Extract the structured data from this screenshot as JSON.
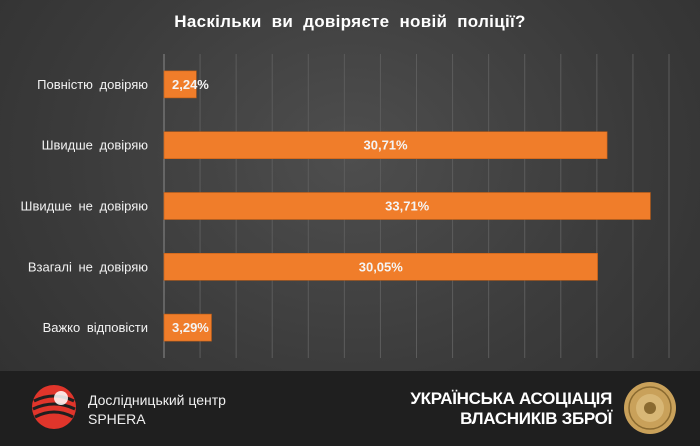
{
  "chart_data": {
    "type": "bar",
    "orientation": "horizontal",
    "title": "Наскільки  ви  довіряєте  новій  поліції?",
    "categories": [
      "Повністю довіряю",
      "Швидше довіряю",
      "Швидше не довіряю",
      "Взагалі не довіряю",
      "Важко відповісти"
    ],
    "values": [
      2.24,
      30.71,
      33.71,
      30.05,
      3.29
    ],
    "value_labels": [
      "2,24%",
      "30,71%",
      "33,71%",
      "30,05%",
      "3,29%"
    ],
    "xlim": [
      0,
      35
    ],
    "grid": true,
    "legend": "none",
    "bar_color": "#f07d2a"
  },
  "footer": {
    "left_org_line1": "Дослідницький центр",
    "left_org_line2": "SPHERA",
    "right_org_line1": "УКРАЇНСЬКА АСОЦІАЦІЯ",
    "right_org_line2": "ВЛАСНИКІВ ЗБРОЇ"
  },
  "colors": {
    "accent": "#f07d2a",
    "logo_red": "#e0352b",
    "seal_gold": "#c9a15a"
  },
  "icons": {
    "left_logo": "sphera-sphere-logo",
    "right_logo": "association-seal-logo"
  }
}
